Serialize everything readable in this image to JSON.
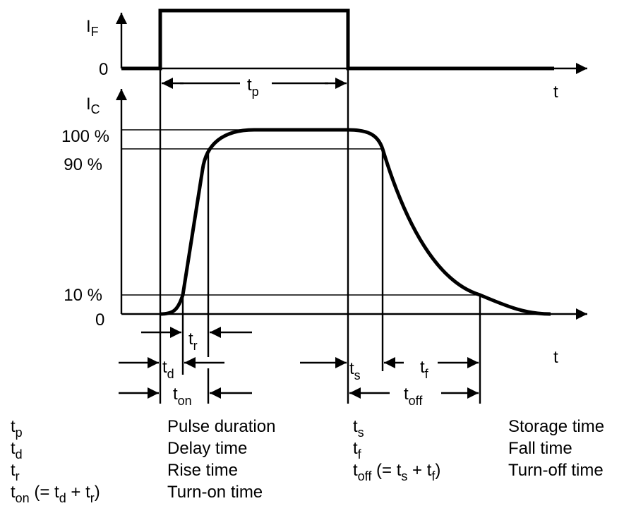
{
  "top": {
    "axis_label": "I",
    "axis_sub": "F",
    "zero": "0",
    "t_axis": "t",
    "tp_label": "t",
    "tp_sub": "p"
  },
  "bottom": {
    "axis_label": "I",
    "axis_sub": "C",
    "ticks": [
      "100 %",
      "90 %",
      "10 %",
      "0"
    ],
    "t_axis": "t"
  },
  "intervals": {
    "tr": {
      "t": "t",
      "sub": "r"
    },
    "td": {
      "t": "t",
      "sub": "d"
    },
    "ton": {
      "t": "t",
      "sub": "on"
    },
    "ts": {
      "t": "t",
      "sub": "s"
    },
    "tf": {
      "t": "t",
      "sub": "f"
    },
    "toff": {
      "t": "t",
      "sub": "off"
    }
  },
  "legend": [
    {
      "sym": "t",
      "sub": "p",
      "extra": "",
      "desc": "Pulse duration"
    },
    {
      "sym": "t",
      "sub": "d",
      "extra": "",
      "desc": "Delay time"
    },
    {
      "sym": "t",
      "sub": "r",
      "extra": "",
      "desc": "Rise time"
    },
    {
      "sym": "t",
      "sub": "on",
      "extra": " (= t",
      "e_sub1": "d",
      "e_mid": " + t",
      "e_sub2": "r",
      "e_end": ")",
      "desc": "Turn-on time"
    },
    {
      "sym": "t",
      "sub": "s",
      "extra": "",
      "desc": "Storage time"
    },
    {
      "sym": "t",
      "sub": "f",
      "extra": "",
      "desc": "Fall time"
    },
    {
      "sym": "t",
      "sub": "off",
      "extra": " (= t",
      "e_sub1": "s",
      "e_mid": " + t",
      "e_sub2": "f",
      "e_end": ")",
      "desc": "Turn-off time"
    }
  ]
}
